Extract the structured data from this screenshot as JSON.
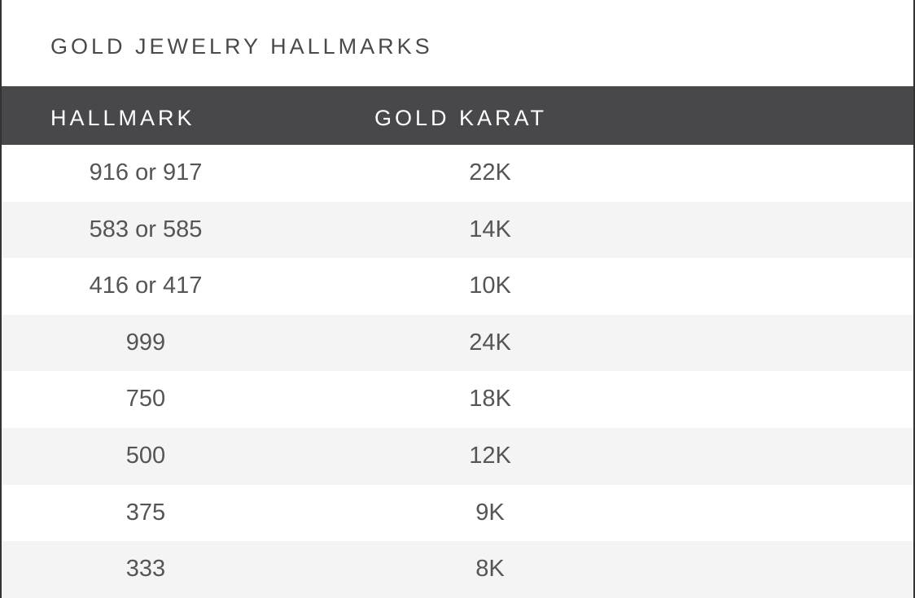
{
  "title": "GOLD JEWELRY HALLMARKS",
  "columns": [
    "HALLMARK",
    "GOLD KARAT"
  ],
  "rows": [
    [
      "916 or 917",
      "22K"
    ],
    [
      "583 or 585",
      "14K"
    ],
    [
      "416 or 417",
      "10K"
    ],
    [
      "999",
      "24K"
    ],
    [
      "750",
      "18K"
    ],
    [
      "500",
      "12K"
    ],
    [
      "375",
      "9K"
    ],
    [
      "333",
      "8K"
    ]
  ],
  "colors": {
    "header_bg": "#48484b",
    "stripe": "#f4f4f4",
    "text": "#555555"
  }
}
